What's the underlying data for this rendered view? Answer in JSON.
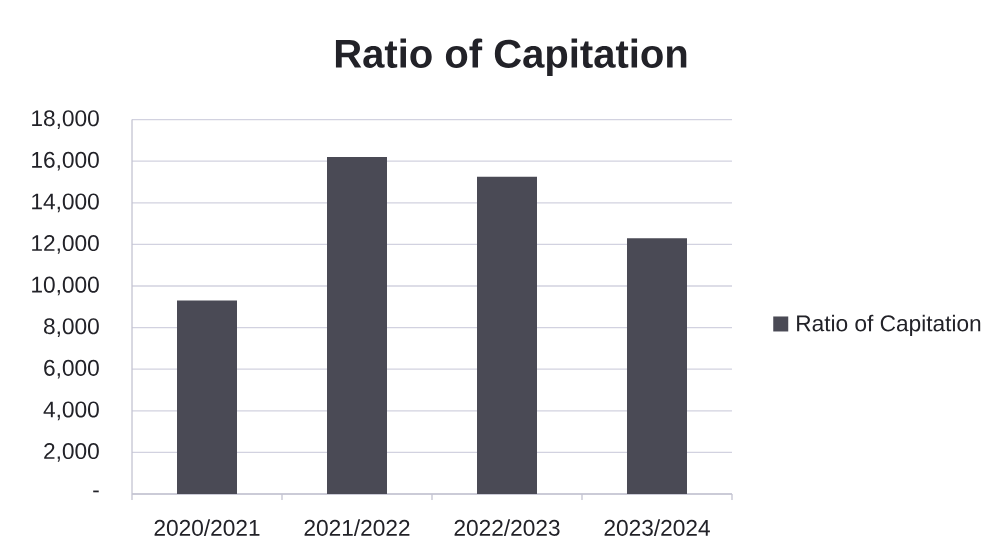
{
  "chart_data": {
    "type": "bar",
    "title": "Ratio of Capitation",
    "categories": [
      "2020/2021",
      "2021/2022",
      "2022/2023",
      "2023/2024"
    ],
    "series": [
      {
        "name": "Ratio of Capitation",
        "color": "#4a4a55",
        "values": [
          9300,
          16200,
          15250,
          12300
        ]
      }
    ],
    "ylim": [
      0,
      18000
    ],
    "yticks": [
      {
        "value": 0,
        "label": "-"
      },
      {
        "value": 2000,
        "label": "2,000"
      },
      {
        "value": 4000,
        "label": "4,000"
      },
      {
        "value": 6000,
        "label": "6,000"
      },
      {
        "value": 8000,
        "label": "8,000"
      },
      {
        "value": 10000,
        "label": "10,000"
      },
      {
        "value": 12000,
        "label": "12,000"
      },
      {
        "value": 14000,
        "label": "14,000"
      },
      {
        "value": 16000,
        "label": "16,000"
      },
      {
        "value": 18000,
        "label": "18,000"
      }
    ],
    "grid": "y",
    "legend": "right"
  }
}
